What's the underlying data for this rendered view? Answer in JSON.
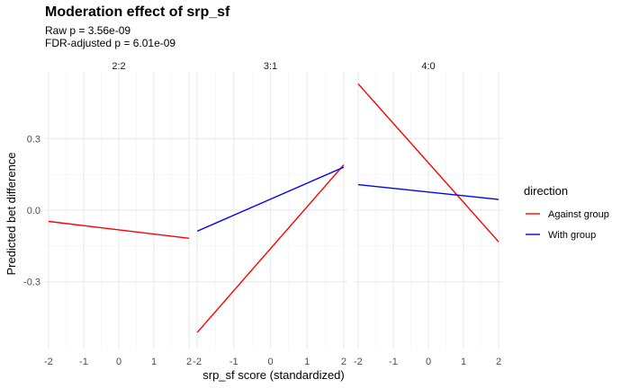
{
  "chart_data": {
    "type": "line",
    "title": "Moderation effect of srp_sf",
    "subtitle_lines": [
      "Raw p = 3.56e-09",
      "FDR-adjusted p = 6.01e-09"
    ],
    "xlabel": "srp_sf score (standardized)",
    "ylabel": "Predicted bet difference",
    "xlim": [
      -2.1,
      2.1
    ],
    "ylim": [
      -0.58,
      0.58
    ],
    "x_ticks": [
      -2,
      -1,
      0,
      1,
      2
    ],
    "x_tick_labels": [
      "-2",
      "-1",
      "0",
      "1",
      "2"
    ],
    "y_ticks": [
      -0.3,
      0,
      0.3
    ],
    "y_tick_labels": [
      "-0.3",
      "0.0",
      "0.3"
    ],
    "grid": true,
    "legend": {
      "title": "direction",
      "placement": "right",
      "entries": [
        {
          "name": "Against group",
          "color": "#ff0000"
        },
        {
          "name": "With group",
          "color": "#0000ff"
        }
      ]
    },
    "facets": [
      {
        "label": "2:2",
        "series": [
          {
            "name": "Against group",
            "color": "#ff0000",
            "x": [
              -2,
              2
            ],
            "y": [
              -0.047,
              -0.118
            ]
          }
        ]
      },
      {
        "label": "3:1",
        "series": [
          {
            "name": "Against group",
            "color": "#ff0000",
            "x": [
              -2,
              2
            ],
            "y": [
              -0.513,
              0.19
            ]
          },
          {
            "name": "With group",
            "color": "#0000ff",
            "x": [
              -2,
              2
            ],
            "y": [
              -0.088,
              0.18
            ]
          }
        ]
      },
      {
        "label": "4:0",
        "series": [
          {
            "name": "Against group",
            "color": "#ff0000",
            "x": [
              -2,
              2
            ],
            "y": [
              0.53,
              -0.133
            ]
          },
          {
            "name": "With group",
            "color": "#0000ff",
            "x": [
              -2,
              2
            ],
            "y": [
              0.107,
              0.045
            ]
          }
        ]
      }
    ]
  }
}
